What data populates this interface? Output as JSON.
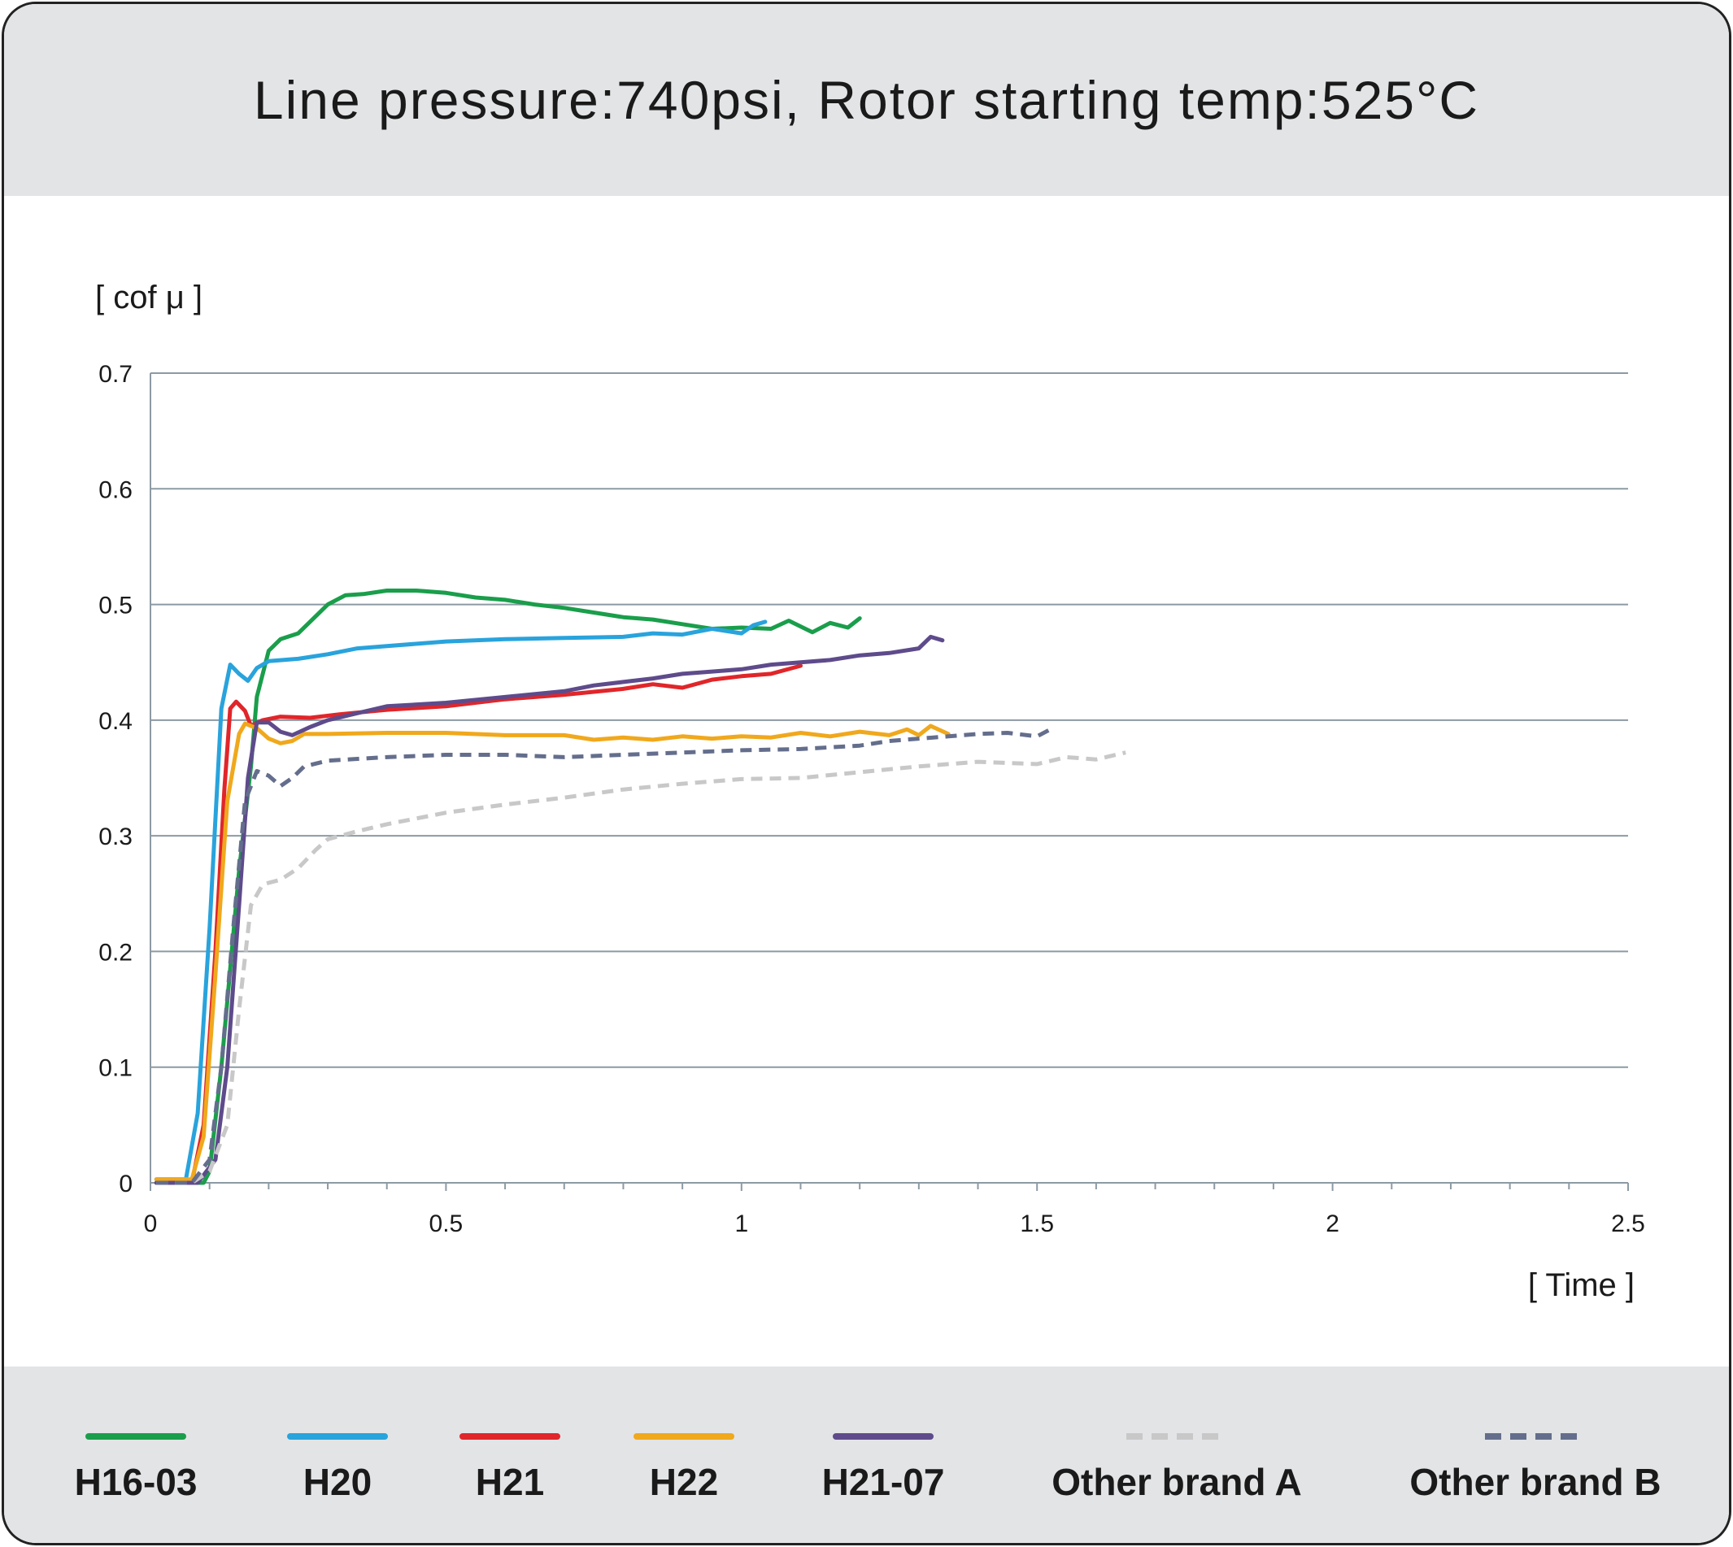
{
  "chart_data": {
    "type": "line",
    "title": "Line pressure:740psi, Rotor starting temp:525°C",
    "ylabel": "[ cof μ ]",
    "xlabel": "[ Time ]",
    "xlim": [
      0,
      2.5
    ],
    "ylim": [
      0,
      0.7
    ],
    "x_ticks": [
      "0",
      "0.5",
      "1",
      "1.5",
      "2",
      "2.5"
    ],
    "y_ticks": [
      "0",
      "0.1",
      "0.2",
      "0.3",
      "0.4",
      "0.5",
      "0.6",
      "0.7"
    ],
    "grid": "horizontal",
    "legend_position": "bottom",
    "series": [
      {
        "name": "H16-03",
        "color": "#1a9e4b",
        "dash": false,
        "points": [
          [
            0.01,
            0.0
          ],
          [
            0.09,
            0.0
          ],
          [
            0.1,
            0.01
          ],
          [
            0.12,
            0.1
          ],
          [
            0.15,
            0.27
          ],
          [
            0.17,
            0.36
          ],
          [
            0.18,
            0.42
          ],
          [
            0.2,
            0.46
          ],
          [
            0.22,
            0.47
          ],
          [
            0.25,
            0.475
          ],
          [
            0.28,
            0.49
          ],
          [
            0.3,
            0.5
          ],
          [
            0.33,
            0.508
          ],
          [
            0.36,
            0.509
          ],
          [
            0.4,
            0.512
          ],
          [
            0.45,
            0.512
          ],
          [
            0.5,
            0.51
          ],
          [
            0.55,
            0.506
          ],
          [
            0.6,
            0.504
          ],
          [
            0.65,
            0.5
          ],
          [
            0.7,
            0.497
          ],
          [
            0.75,
            0.493
          ],
          [
            0.8,
            0.489
          ],
          [
            0.85,
            0.487
          ],
          [
            0.9,
            0.483
          ],
          [
            0.95,
            0.479
          ],
          [
            1.0,
            0.48
          ],
          [
            1.05,
            0.479
          ],
          [
            1.08,
            0.486
          ],
          [
            1.12,
            0.476
          ],
          [
            1.15,
            0.484
          ],
          [
            1.18,
            0.48
          ],
          [
            1.2,
            0.488
          ]
        ]
      },
      {
        "name": "H20",
        "color": "#29a3dc",
        "dash": false,
        "points": [
          [
            0.01,
            0.003
          ],
          [
            0.06,
            0.003
          ],
          [
            0.08,
            0.06
          ],
          [
            0.1,
            0.22
          ],
          [
            0.12,
            0.41
          ],
          [
            0.135,
            0.448
          ],
          [
            0.15,
            0.44
          ],
          [
            0.165,
            0.434
          ],
          [
            0.18,
            0.445
          ],
          [
            0.2,
            0.451
          ],
          [
            0.25,
            0.453
          ],
          [
            0.3,
            0.457
          ],
          [
            0.35,
            0.462
          ],
          [
            0.4,
            0.464
          ],
          [
            0.5,
            0.468
          ],
          [
            0.6,
            0.47
          ],
          [
            0.7,
            0.471
          ],
          [
            0.8,
            0.472
          ],
          [
            0.85,
            0.475
          ],
          [
            0.9,
            0.474
          ],
          [
            0.95,
            0.479
          ],
          [
            1.0,
            0.475
          ],
          [
            1.02,
            0.482
          ],
          [
            1.04,
            0.485
          ]
        ]
      },
      {
        "name": "H21",
        "color": "#e0262a",
        "dash": false,
        "points": [
          [
            0.01,
            0.0
          ],
          [
            0.07,
            0.0
          ],
          [
            0.09,
            0.05
          ],
          [
            0.11,
            0.2
          ],
          [
            0.125,
            0.34
          ],
          [
            0.135,
            0.41
          ],
          [
            0.145,
            0.416
          ],
          [
            0.16,
            0.408
          ],
          [
            0.17,
            0.395
          ],
          [
            0.19,
            0.4
          ],
          [
            0.22,
            0.403
          ],
          [
            0.27,
            0.402
          ],
          [
            0.32,
            0.405
          ],
          [
            0.4,
            0.409
          ],
          [
            0.5,
            0.412
          ],
          [
            0.6,
            0.418
          ],
          [
            0.7,
            0.422
          ],
          [
            0.8,
            0.427
          ],
          [
            0.85,
            0.431
          ],
          [
            0.9,
            0.428
          ],
          [
            0.95,
            0.435
          ],
          [
            1.0,
            0.438
          ],
          [
            1.05,
            0.44
          ],
          [
            1.1,
            0.447
          ]
        ]
      },
      {
        "name": "H22",
        "color": "#f0a81c",
        "dash": false,
        "points": [
          [
            0.01,
            0.003
          ],
          [
            0.07,
            0.003
          ],
          [
            0.09,
            0.04
          ],
          [
            0.11,
            0.18
          ],
          [
            0.13,
            0.33
          ],
          [
            0.15,
            0.388
          ],
          [
            0.16,
            0.397
          ],
          [
            0.18,
            0.393
          ],
          [
            0.2,
            0.384
          ],
          [
            0.22,
            0.38
          ],
          [
            0.24,
            0.382
          ],
          [
            0.26,
            0.388
          ],
          [
            0.3,
            0.388
          ],
          [
            0.4,
            0.389
          ],
          [
            0.5,
            0.389
          ],
          [
            0.6,
            0.387
          ],
          [
            0.7,
            0.387
          ],
          [
            0.75,
            0.383
          ],
          [
            0.8,
            0.385
          ],
          [
            0.85,
            0.383
          ],
          [
            0.9,
            0.386
          ],
          [
            0.95,
            0.384
          ],
          [
            1.0,
            0.386
          ],
          [
            1.05,
            0.385
          ],
          [
            1.1,
            0.389
          ],
          [
            1.15,
            0.386
          ],
          [
            1.2,
            0.39
          ],
          [
            1.25,
            0.387
          ],
          [
            1.28,
            0.392
          ],
          [
            1.3,
            0.387
          ],
          [
            1.32,
            0.395
          ],
          [
            1.35,
            0.388
          ]
        ]
      },
      {
        "name": "H21-07",
        "color": "#5e4b8b",
        "dash": false,
        "points": [
          [
            0.01,
            0.0
          ],
          [
            0.08,
            0.0
          ],
          [
            0.11,
            0.02
          ],
          [
            0.13,
            0.1
          ],
          [
            0.15,
            0.24
          ],
          [
            0.165,
            0.35
          ],
          [
            0.18,
            0.398
          ],
          [
            0.2,
            0.398
          ],
          [
            0.22,
            0.39
          ],
          [
            0.24,
            0.387
          ],
          [
            0.27,
            0.394
          ],
          [
            0.3,
            0.4
          ],
          [
            0.35,
            0.406
          ],
          [
            0.4,
            0.412
          ],
          [
            0.5,
            0.415
          ],
          [
            0.6,
            0.42
          ],
          [
            0.7,
            0.425
          ],
          [
            0.75,
            0.43
          ],
          [
            0.8,
            0.433
          ],
          [
            0.85,
            0.436
          ],
          [
            0.9,
            0.44
          ],
          [
            0.95,
            0.442
          ],
          [
            1.0,
            0.444
          ],
          [
            1.05,
            0.448
          ],
          [
            1.1,
            0.45
          ],
          [
            1.15,
            0.452
          ],
          [
            1.2,
            0.456
          ],
          [
            1.25,
            0.458
          ],
          [
            1.3,
            0.462
          ],
          [
            1.32,
            0.472
          ],
          [
            1.34,
            0.469
          ]
        ]
      },
      {
        "name": "Other brand A",
        "color": "#c8c8c8",
        "dash": true,
        "points": [
          [
            0.01,
            0.0
          ],
          [
            0.07,
            0.0
          ],
          [
            0.1,
            0.01
          ],
          [
            0.13,
            0.05
          ],
          [
            0.15,
            0.15
          ],
          [
            0.17,
            0.24
          ],
          [
            0.19,
            0.258
          ],
          [
            0.22,
            0.262
          ],
          [
            0.25,
            0.272
          ],
          [
            0.28,
            0.288
          ],
          [
            0.3,
            0.297
          ],
          [
            0.35,
            0.304
          ],
          [
            0.4,
            0.31
          ],
          [
            0.5,
            0.32
          ],
          [
            0.6,
            0.327
          ],
          [
            0.7,
            0.333
          ],
          [
            0.8,
            0.34
          ],
          [
            0.9,
            0.345
          ],
          [
            1.0,
            0.349
          ],
          [
            1.1,
            0.35
          ],
          [
            1.2,
            0.355
          ],
          [
            1.3,
            0.36
          ],
          [
            1.4,
            0.364
          ],
          [
            1.5,
            0.362
          ],
          [
            1.55,
            0.368
          ],
          [
            1.6,
            0.366
          ],
          [
            1.65,
            0.372
          ]
        ]
      },
      {
        "name": "Other brand B",
        "color": "#646e8c",
        "dash": true,
        "points": [
          [
            0.01,
            0.0
          ],
          [
            0.07,
            0.0
          ],
          [
            0.1,
            0.02
          ],
          [
            0.12,
            0.1
          ],
          [
            0.14,
            0.22
          ],
          [
            0.16,
            0.33
          ],
          [
            0.18,
            0.356
          ],
          [
            0.2,
            0.352
          ],
          [
            0.22,
            0.343
          ],
          [
            0.24,
            0.35
          ],
          [
            0.26,
            0.36
          ],
          [
            0.3,
            0.365
          ],
          [
            0.4,
            0.368
          ],
          [
            0.5,
            0.37
          ],
          [
            0.6,
            0.37
          ],
          [
            0.7,
            0.368
          ],
          [
            0.8,
            0.37
          ],
          [
            0.9,
            0.372
          ],
          [
            1.0,
            0.374
          ],
          [
            1.1,
            0.375
          ],
          [
            1.2,
            0.378
          ],
          [
            1.25,
            0.382
          ],
          [
            1.3,
            0.384
          ],
          [
            1.35,
            0.386
          ],
          [
            1.4,
            0.388
          ],
          [
            1.45,
            0.389
          ],
          [
            1.5,
            0.386
          ],
          [
            1.53,
            0.394
          ]
        ]
      }
    ]
  }
}
